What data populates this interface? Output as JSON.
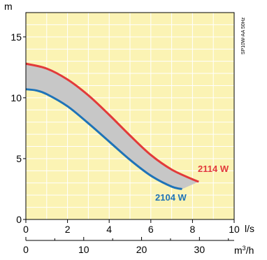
{
  "chart_data": {
    "type": "area",
    "y_unit": "m",
    "x_unit_primary": "l/s",
    "x_unit_secondary": "m3/h",
    "side_label": "SP10W-AA 50Hz",
    "xlim": [
      0,
      10
    ],
    "ylim": [
      0,
      17
    ],
    "x_ticks": [
      "0",
      "2",
      "4",
      "6",
      "8",
      "10"
    ],
    "x2_ticks": [
      "0",
      "10",
      "20",
      "30"
    ],
    "y_ticks": [
      "0",
      "5",
      "10",
      "15"
    ],
    "grid": true,
    "plot_background": "#fbf3b4",
    "band_color": "#c7c7c7",
    "series": [
      {
        "name": "2114 W",
        "color": "#e23a3a",
        "x": [
          0,
          1,
          2,
          3,
          4,
          5,
          6,
          7,
          8,
          8.3
        ],
        "y": [
          12.8,
          12.4,
          11.5,
          10.2,
          8.6,
          6.9,
          5.3,
          4.1,
          3.3,
          3.1
        ]
      },
      {
        "name": "2104 W",
        "color": "#1e73b8",
        "x": [
          0,
          0.5,
          1,
          2,
          3,
          4,
          5,
          6,
          7,
          7.5
        ],
        "y": [
          10.7,
          10.6,
          10.3,
          9.3,
          7.9,
          6.4,
          4.9,
          3.6,
          2.7,
          2.5
        ]
      }
    ]
  }
}
